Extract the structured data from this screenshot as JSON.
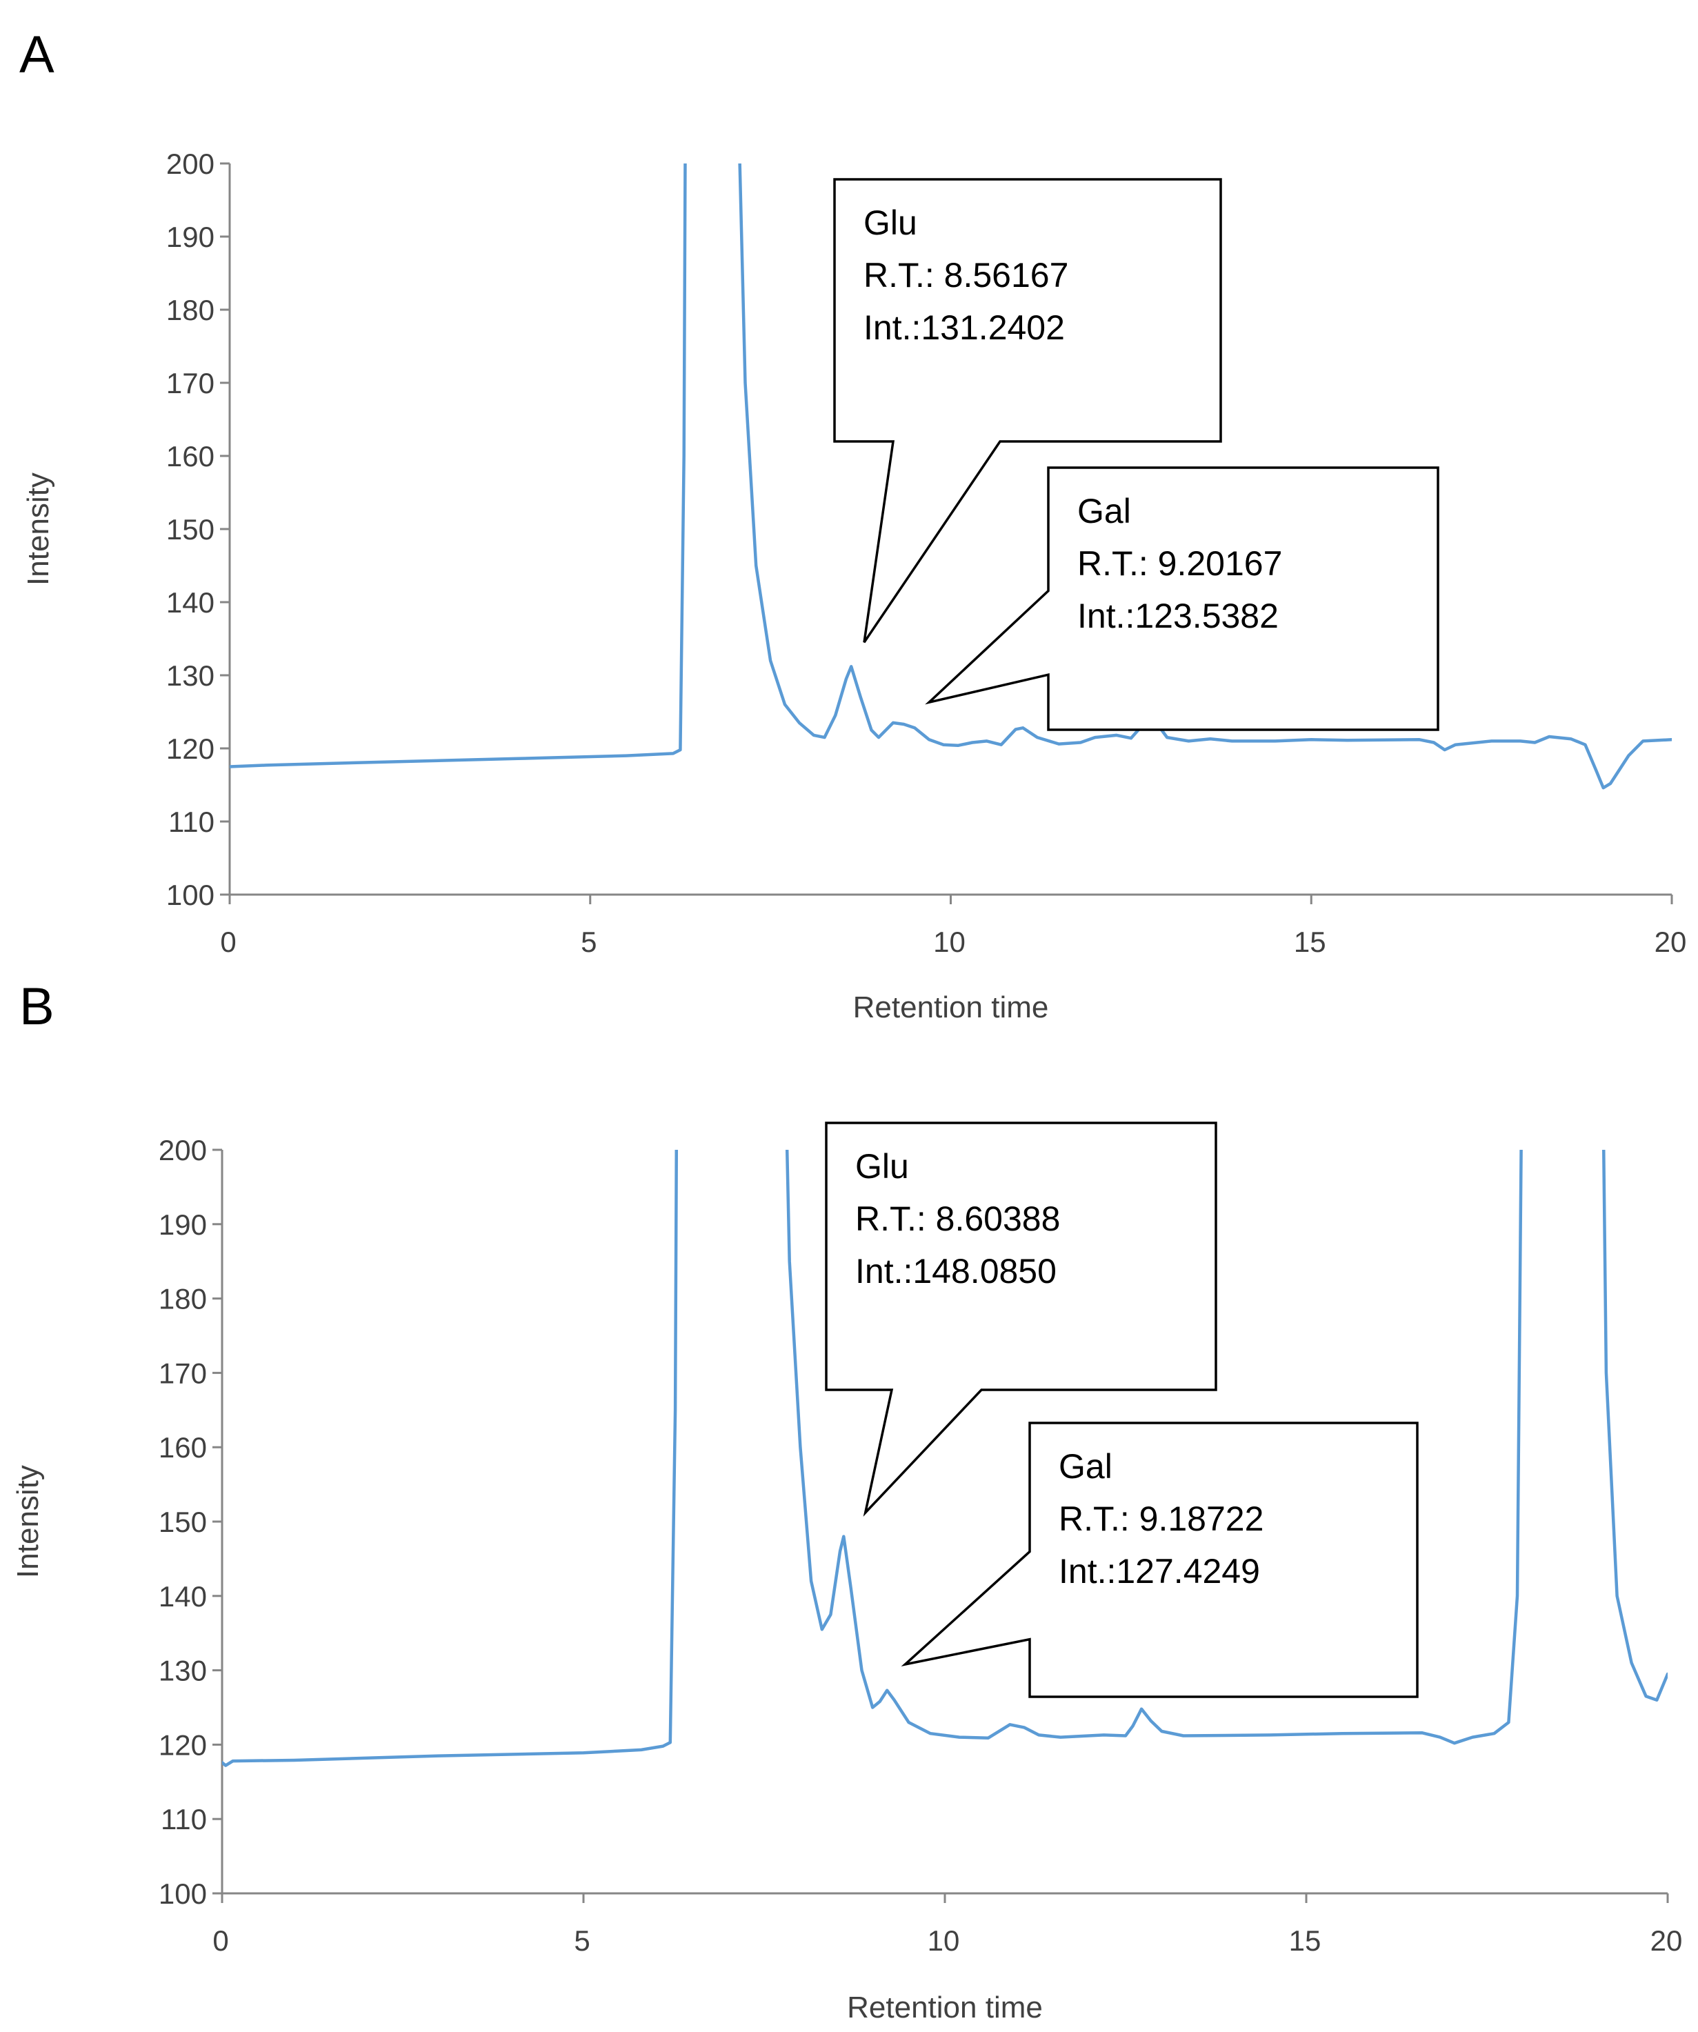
{
  "chart_data": [
    {
      "panel_label": "A",
      "type": "line",
      "xlabel": "Retention time",
      "ylabel": "Intensity",
      "xlim": [
        0,
        20
      ],
      "ylim": [
        100,
        200
      ],
      "x_ticks": [
        0,
        5,
        10,
        15,
        20
      ],
      "y_ticks": [
        100,
        110,
        120,
        130,
        140,
        150,
        160,
        170,
        180,
        190,
        200
      ],
      "grid": false,
      "series_color": "#5b9bd5",
      "series": [
        {
          "points": [
            [
              0,
              117.5
            ],
            [
              0.5,
              117.7
            ],
            [
              2,
              118.1
            ],
            [
              4,
              118.6
            ],
            [
              5.5,
              119.0
            ],
            [
              6.15,
              119.3
            ],
            [
              6.25,
              119.8
            ],
            [
              6.3,
              160
            ],
            [
              6.33,
              230
            ],
            [
              7.0,
              230
            ],
            [
              7.15,
              170
            ],
            [
              7.3,
              145
            ],
            [
              7.5,
              132
            ],
            [
              7.7,
              126
            ],
            [
              7.9,
              123.5
            ],
            [
              8.1,
              121.8
            ],
            [
              8.25,
              121.5
            ],
            [
              8.4,
              124.5
            ],
            [
              8.55,
              129.5
            ],
            [
              8.62,
              131.2
            ],
            [
              8.75,
              127
            ],
            [
              8.9,
              122.5
            ],
            [
              9.0,
              121.5
            ],
            [
              9.2,
              123.5
            ],
            [
              9.35,
              123.3
            ],
            [
              9.5,
              122.8
            ],
            [
              9.7,
              121.2
            ],
            [
              9.9,
              120.5
            ],
            [
              10.1,
              120.4
            ],
            [
              10.3,
              120.8
            ],
            [
              10.5,
              121.0
            ],
            [
              10.7,
              120.5
            ],
            [
              10.9,
              122.6
            ],
            [
              11.0,
              122.8
            ],
            [
              11.2,
              121.5
            ],
            [
              11.5,
              120.6
            ],
            [
              11.8,
              120.8
            ],
            [
              12.0,
              121.5
            ],
            [
              12.3,
              121.8
            ],
            [
              12.5,
              121.4
            ],
            [
              12.6,
              122.5
            ],
            [
              12.72,
              125.5
            ],
            [
              12.85,
              123.5
            ],
            [
              13.0,
              121.5
            ],
            [
              13.3,
              121.0
            ],
            [
              13.6,
              121.3
            ],
            [
              13.9,
              121.0
            ],
            [
              14.5,
              121.0
            ],
            [
              15.0,
              121.2
            ],
            [
              15.5,
              121.1
            ],
            [
              16.5,
              121.2
            ],
            [
              16.7,
              120.8
            ],
            [
              16.85,
              119.8
            ],
            [
              17.0,
              120.5
            ],
            [
              17.5,
              121.0
            ],
            [
              17.9,
              121.0
            ],
            [
              18.1,
              120.8
            ],
            [
              18.3,
              121.6
            ],
            [
              18.6,
              121.3
            ],
            [
              18.8,
              120.5
            ],
            [
              18.95,
              117.0
            ],
            [
              19.05,
              114.6
            ],
            [
              19.15,
              115.2
            ],
            [
              19.4,
              119.0
            ],
            [
              19.6,
              121.0
            ],
            [
              20.0,
              121.2
            ]
          ]
        }
      ],
      "annotations": [
        {
          "lines": [
            "Glu",
            "R.T.: 8.56167",
            "Int.:131.2402"
          ],
          "target_x": 8.8,
          "target_y": 134.5
        },
        {
          "lines": [
            "Gal",
            "R.T.: 9.20167",
            "Int.:123.5382"
          ],
          "target_x": 9.7,
          "target_y": 126.3
        }
      ]
    },
    {
      "panel_label": "B",
      "type": "line",
      "xlabel": "Retention time",
      "ylabel": "Intensity",
      "xlim": [
        0,
        20
      ],
      "ylim": [
        100,
        200
      ],
      "x_ticks": [
        0,
        5,
        10,
        15,
        20
      ],
      "y_ticks": [
        100,
        110,
        120,
        130,
        140,
        150,
        160,
        170,
        180,
        190,
        200
      ],
      "grid": false,
      "series_color": "#5b9bd5",
      "series": [
        {
          "points": [
            [
              0,
              117.6
            ],
            [
              0.05,
              117.2
            ],
            [
              0.15,
              117.8
            ],
            [
              1,
              117.9
            ],
            [
              3,
              118.5
            ],
            [
              5,
              118.9
            ],
            [
              5.8,
              119.3
            ],
            [
              6.1,
              119.8
            ],
            [
              6.2,
              120.3
            ],
            [
              6.27,
              165
            ],
            [
              6.3,
              230
            ],
            [
              7.75,
              230
            ],
            [
              7.85,
              185
            ],
            [
              8.0,
              160
            ],
            [
              8.15,
              142
            ],
            [
              8.3,
              135.5
            ],
            [
              8.42,
              137.5
            ],
            [
              8.55,
              146
            ],
            [
              8.6,
              148.0
            ],
            [
              8.7,
              141
            ],
            [
              8.85,
              130
            ],
            [
              9.0,
              125
            ],
            [
              9.1,
              125.8
            ],
            [
              9.2,
              127.3
            ],
            [
              9.3,
              126
            ],
            [
              9.5,
              123
            ],
            [
              9.8,
              121.5
            ],
            [
              10.2,
              121.0
            ],
            [
              10.6,
              120.9
            ],
            [
              10.9,
              122.7
            ],
            [
              11.1,
              122.3
            ],
            [
              11.3,
              121.3
            ],
            [
              11.6,
              121.0
            ],
            [
              12.2,
              121.3
            ],
            [
              12.5,
              121.2
            ],
            [
              12.6,
              122.5
            ],
            [
              12.72,
              124.8
            ],
            [
              12.85,
              123.2
            ],
            [
              13.0,
              121.8
            ],
            [
              13.3,
              121.2
            ],
            [
              14.5,
              121.3
            ],
            [
              15.5,
              121.5
            ],
            [
              16.6,
              121.6
            ],
            [
              16.85,
              121.0
            ],
            [
              17.05,
              120.2
            ],
            [
              17.3,
              121.0
            ],
            [
              17.6,
              121.5
            ],
            [
              17.8,
              123
            ],
            [
              17.92,
              140
            ],
            [
              18.0,
              230
            ],
            [
              19.08,
              230
            ],
            [
              19.15,
              170
            ],
            [
              19.3,
              140
            ],
            [
              19.5,
              131
            ],
            [
              19.7,
              126.5
            ],
            [
              19.85,
              126.0
            ],
            [
              20.0,
              129.5
            ]
          ]
        }
      ],
      "annotations": [
        {
          "lines": [
            "Glu",
            "R.T.: 8.60388",
            "Int.:148.0850"
          ],
          "target_x": 8.9,
          "target_y": 151.2
        },
        {
          "lines": [
            "Gal",
            "R.T.: 9.18722",
            "Int.:127.4249"
          ],
          "target_x": 9.45,
          "target_y": 130.8
        }
      ]
    }
  ]
}
